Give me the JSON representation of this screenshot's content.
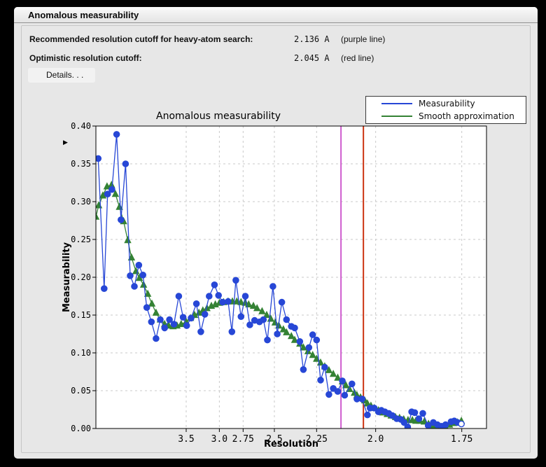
{
  "panel": {
    "title": "Anomalous measurability"
  },
  "info": {
    "rows": [
      {
        "label": "Recommended resolution cutoff for heavy-atom search:",
        "value": "2.136 A",
        "note": "(purple line)"
      },
      {
        "label": "Optimistic resolution cutoff:",
        "value": "2.045 A",
        "note": "(red line)"
      }
    ],
    "details_label": "Details. . ."
  },
  "chart_data": {
    "type": "line",
    "title": "Anomalous measurability",
    "xlabel": "Resolution",
    "ylabel": "Measurability",
    "x_axis": {
      "unit": "angstrom",
      "scale": "inverse_d_squared",
      "ticks": [
        3.5,
        3.0,
        2.75,
        2.5,
        2.25,
        2.0,
        1.75
      ],
      "tick_labels": [
        "3.5",
        "3.0",
        "2.75",
        "2.5",
        "2.25",
        "2.0",
        "1.75"
      ],
      "range_d": [
        26.7,
        1.69
      ]
    },
    "y_axis": {
      "ticks": [
        0.4,
        0.35,
        0.3,
        0.25,
        0.2,
        0.15,
        0.1,
        0.05,
        0.0
      ],
      "tick_labels": [
        "0.40",
        "0.35",
        "0.30",
        "0.25",
        "0.20",
        "0.15",
        "0.10",
        "0.05",
        "0.00"
      ],
      "range": [
        0.0,
        0.4
      ]
    },
    "grid": true,
    "legend_position": "upper right",
    "cutoff_lines": [
      {
        "name": "recommended-cutoff",
        "label": "purple line",
        "resolution_A": 2.136,
        "color": "#c53ac5"
      },
      {
        "name": "optimistic-cutoff",
        "label": "red line",
        "resolution_A": 2.045,
        "color": "#cc3311"
      }
    ],
    "series": [
      {
        "name": "Measurability",
        "color": "#2747d6",
        "marker": "circle",
        "points": [
          [
            17.0,
            0.357
          ],
          [
            10.7,
            0.185
          ],
          [
            9.2,
            0.31
          ],
          [
            8.0,
            0.316
          ],
          [
            7.1,
            0.389
          ],
          [
            6.5,
            0.276
          ],
          [
            6.0,
            0.35
          ],
          [
            5.6,
            0.202
          ],
          [
            5.3,
            0.188
          ],
          [
            5.03,
            0.216
          ],
          [
            4.81,
            0.203
          ],
          [
            4.63,
            0.16
          ],
          [
            4.44,
            0.141
          ],
          [
            4.27,
            0.119
          ],
          [
            4.13,
            0.144
          ],
          [
            4.0,
            0.133
          ],
          [
            3.87,
            0.144
          ],
          [
            3.76,
            0.138
          ],
          [
            3.65,
            0.175
          ],
          [
            3.56,
            0.147
          ],
          [
            3.49,
            0.136
          ],
          [
            3.41,
            0.146
          ],
          [
            3.32,
            0.165
          ],
          [
            3.25,
            0.128
          ],
          [
            3.19,
            0.151
          ],
          [
            3.13,
            0.175
          ],
          [
            3.06,
            0.19
          ],
          [
            3.01,
            0.176
          ],
          [
            2.96,
            0.167
          ],
          [
            2.9,
            0.168
          ],
          [
            2.86,
            0.128
          ],
          [
            2.82,
            0.196
          ],
          [
            2.77,
            0.148
          ],
          [
            2.73,
            0.175
          ],
          [
            2.69,
            0.137
          ],
          [
            2.65,
            0.143
          ],
          [
            2.61,
            0.141
          ],
          [
            2.58,
            0.144
          ],
          [
            2.55,
            0.117
          ],
          [
            2.51,
            0.188
          ],
          [
            2.48,
            0.125
          ],
          [
            2.45,
            0.167
          ],
          [
            2.42,
            0.144
          ],
          [
            2.39,
            0.135
          ],
          [
            2.37,
            0.133
          ],
          [
            2.34,
            0.115
          ],
          [
            2.32,
            0.078
          ],
          [
            2.29,
            0.107
          ],
          [
            2.27,
            0.124
          ],
          [
            2.25,
            0.117
          ],
          [
            2.23,
            0.064
          ],
          [
            2.21,
            0.081
          ],
          [
            2.19,
            0.045
          ],
          [
            2.17,
            0.053
          ],
          [
            2.15,
            0.049
          ],
          [
            2.13,
            0.063
          ],
          [
            2.12,
            0.044
          ],
          [
            2.09,
            0.059
          ],
          [
            2.07,
            0.039
          ],
          [
            2.05,
            0.039
          ],
          [
            2.03,
            0.018
          ],
          [
            2.02,
            0.027
          ],
          [
            2.005,
            0.027
          ],
          [
            1.99,
            0.022
          ],
          [
            1.98,
            0.024
          ],
          [
            1.968,
            0.022
          ],
          [
            1.955,
            0.02
          ],
          [
            1.943,
            0.017
          ],
          [
            1.929,
            0.013
          ],
          [
            1.916,
            0.012
          ],
          [
            1.906,
            0.008
          ],
          [
            1.895,
            0.002
          ],
          [
            1.883,
            0.022
          ],
          [
            1.874,
            0.021
          ],
          [
            1.862,
            0.013
          ],
          [
            1.851,
            0.02
          ],
          [
            1.836,
            0.004
          ],
          [
            1.822,
            0.008
          ],
          [
            1.811,
            0.005
          ],
          [
            1.8,
            0.003
          ],
          [
            1.79,
            0.005
          ],
          [
            1.776,
            0.009
          ],
          [
            1.768,
            0.01
          ],
          [
            1.76,
            0.008
          ],
          [
            1.751,
            0.006
          ]
        ]
      },
      {
        "name": "Smooth approximation",
        "color": "#348234",
        "marker": "triangle",
        "points": [
          [
            26.7,
            0.28
          ],
          [
            16.0,
            0.295
          ],
          [
            11.5,
            0.308
          ],
          [
            9.4,
            0.32
          ],
          [
            8.1,
            0.322
          ],
          [
            7.3,
            0.31
          ],
          [
            6.7,
            0.293
          ],
          [
            6.2,
            0.274
          ],
          [
            5.8,
            0.249
          ],
          [
            5.5,
            0.226
          ],
          [
            5.2,
            0.208
          ],
          [
            5.0,
            0.199
          ],
          [
            4.78,
            0.19
          ],
          [
            4.59,
            0.178
          ],
          [
            4.42,
            0.165
          ],
          [
            4.27,
            0.153
          ],
          [
            4.13,
            0.144
          ],
          [
            4.0,
            0.138
          ],
          [
            3.89,
            0.136
          ],
          [
            3.78,
            0.135
          ],
          [
            3.69,
            0.136
          ],
          [
            3.6,
            0.138
          ],
          [
            3.5,
            0.141
          ],
          [
            3.42,
            0.146
          ],
          [
            3.35,
            0.15
          ],
          [
            3.28,
            0.153
          ],
          [
            3.22,
            0.156
          ],
          [
            3.16,
            0.159
          ],
          [
            3.1,
            0.162
          ],
          [
            3.05,
            0.164
          ],
          [
            3.0,
            0.166
          ],
          [
            2.95,
            0.167
          ],
          [
            2.9,
            0.168
          ],
          [
            2.855,
            0.168
          ],
          [
            2.81,
            0.168
          ],
          [
            2.77,
            0.167
          ],
          [
            2.73,
            0.166
          ],
          [
            2.7,
            0.164
          ],
          [
            2.66,
            0.162
          ],
          [
            2.63,
            0.159
          ],
          [
            2.59,
            0.155
          ],
          [
            2.555,
            0.15
          ],
          [
            2.525,
            0.145
          ],
          [
            2.495,
            0.14
          ],
          [
            2.47,
            0.136
          ],
          [
            2.44,
            0.131
          ],
          [
            2.42,
            0.127
          ],
          [
            2.39,
            0.122
          ],
          [
            2.37,
            0.117
          ],
          [
            2.34,
            0.112
          ],
          [
            2.32,
            0.107
          ],
          [
            2.295,
            0.102
          ],
          [
            2.27,
            0.097
          ],
          [
            2.25,
            0.092
          ],
          [
            2.23,
            0.087
          ],
          [
            2.21,
            0.082
          ],
          [
            2.19,
            0.077
          ],
          [
            2.17,
            0.072
          ],
          [
            2.15,
            0.067
          ],
          [
            2.13,
            0.062
          ],
          [
            2.115,
            0.057
          ],
          [
            2.1,
            0.052
          ],
          [
            2.08,
            0.047
          ],
          [
            2.07,
            0.044
          ],
          [
            2.056,
            0.041
          ],
          [
            2.04,
            0.037
          ],
          [
            2.03,
            0.033
          ],
          [
            2.017,
            0.03
          ],
          [
            2.005,
            0.027
          ],
          [
            1.99,
            0.024
          ],
          [
            1.975,
            0.021
          ],
          [
            1.96,
            0.019
          ],
          [
            1.947,
            0.017
          ],
          [
            1.933,
            0.015
          ],
          [
            1.92,
            0.014
          ],
          [
            1.907,
            0.012
          ],
          [
            1.894,
            0.011
          ],
          [
            1.881,
            0.011
          ],
          [
            1.871,
            0.01
          ],
          [
            1.859,
            0.01
          ],
          [
            1.847,
            0.009
          ],
          [
            1.835,
            0.006
          ],
          [
            1.824,
            0.004
          ],
          [
            1.813,
            0.003
          ],
          [
            1.802,
            0.002
          ],
          [
            1.791,
            0.003
          ],
          [
            1.78,
            0.005
          ],
          [
            1.77,
            0.007
          ],
          [
            1.76,
            0.008
          ],
          [
            1.751,
            0.01
          ]
        ]
      }
    ]
  }
}
